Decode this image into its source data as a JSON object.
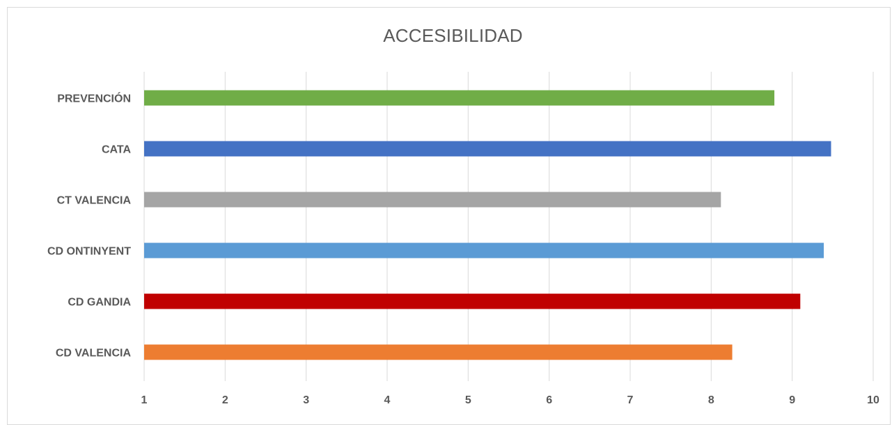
{
  "chart_data": {
    "type": "bar",
    "orientation": "horizontal",
    "title": "ACCESIBILIDAD",
    "categories": [
      "PREVENCIÓN",
      "CATA",
      "CT VALENCIA",
      "CD ONTINYENT",
      "CD GANDIA",
      "CD VALENCIA"
    ],
    "values": [
      8.78,
      9.48,
      8.12,
      9.39,
      9.1,
      8.26
    ],
    "colors": [
      "#70ad47",
      "#4472c4",
      "#a5a5a5",
      "#5b9bd5",
      "#c00000",
      "#ed7d31"
    ],
    "xlim": [
      1,
      10
    ],
    "xticks": [
      "1",
      "2",
      "3",
      "4",
      "5",
      "6",
      "7",
      "8",
      "9",
      "10"
    ],
    "grid": true,
    "legend": "none"
  }
}
